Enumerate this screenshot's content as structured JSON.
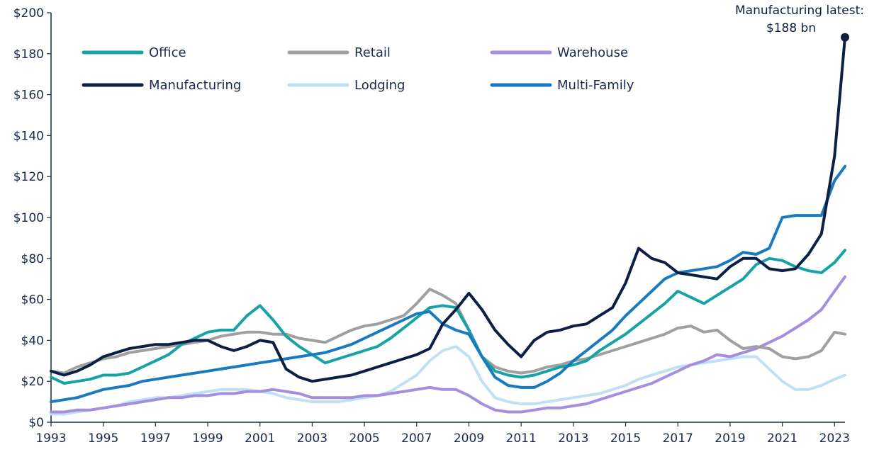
{
  "chart_data": {
    "type": "line",
    "title": "",
    "xlabel": "",
    "ylabel": "",
    "xlim": [
      1993.0,
      2023.4
    ],
    "ylim": [
      0,
      200
    ],
    "grid": false,
    "legend_position": "top-left",
    "x_ticks": [
      1993,
      1995,
      1997,
      1999,
      2001,
      2003,
      2005,
      2007,
      2009,
      2011,
      2013,
      2015,
      2017,
      2019,
      2021,
      2023
    ],
    "y_ticks": [
      0,
      20,
      40,
      60,
      80,
      100,
      120,
      140,
      160,
      180,
      200
    ],
    "y_tick_labels": [
      "$0",
      "$20",
      "$40",
      "$60",
      "$80",
      "$100",
      "$120",
      "$140",
      "$160",
      "$180",
      "$200"
    ],
    "x": [
      1993.0,
      1993.5,
      1994.0,
      1994.5,
      1995.0,
      1995.5,
      1996.0,
      1996.5,
      1997.0,
      1997.5,
      1998.0,
      1998.5,
      1999.0,
      1999.5,
      2000.0,
      2000.5,
      2001.0,
      2001.5,
      2002.0,
      2002.5,
      2003.0,
      2003.5,
      2004.0,
      2004.5,
      2005.0,
      2005.5,
      2006.0,
      2006.5,
      2007.0,
      2007.5,
      2008.0,
      2008.5,
      2009.0,
      2009.5,
      2010.0,
      2010.5,
      2011.0,
      2011.5,
      2012.0,
      2012.5,
      2013.0,
      2013.5,
      2014.0,
      2014.5,
      2015.0,
      2015.5,
      2016.0,
      2016.5,
      2017.0,
      2017.5,
      2018.0,
      2018.5,
      2019.0,
      2019.5,
      2020.0,
      2020.5,
      2021.0,
      2021.5,
      2022.0,
      2022.5,
      2023.0,
      2023.4
    ],
    "series": [
      {
        "name": "Office",
        "color": "#17a2a6",
        "values": [
          22,
          19,
          20,
          21,
          23,
          23,
          24,
          27,
          30,
          33,
          38,
          41,
          44,
          45,
          45,
          52,
          57,
          50,
          42,
          37,
          33,
          29,
          31,
          33,
          35,
          37,
          41,
          46,
          51,
          56,
          57,
          56,
          45,
          32,
          25,
          23,
          22,
          23,
          25,
          27,
          28,
          30,
          35,
          39,
          43,
          48,
          53,
          58,
          64,
          61,
          58,
          62,
          66,
          70,
          77,
          80,
          79,
          76,
          74,
          73,
          78,
          84
        ]
      },
      {
        "name": "Retail",
        "color": "#a0a0a0",
        "values": [
          25,
          24,
          27,
          29,
          31,
          32,
          34,
          35,
          36,
          37,
          38,
          39,
          40,
          42,
          43,
          44,
          44,
          43,
          43,
          41,
          40,
          39,
          42,
          45,
          47,
          48,
          50,
          52,
          58,
          65,
          62,
          58,
          45,
          32,
          27,
          25,
          24,
          25,
          27,
          28,
          30,
          31,
          33,
          35,
          37,
          39,
          41,
          43,
          46,
          47,
          44,
          45,
          40,
          36,
          37,
          36,
          32,
          31,
          32,
          35,
          44,
          43
        ]
      },
      {
        "name": "Warehouse",
        "color": "#a58ee0",
        "values": [
          5,
          5,
          6,
          6,
          7,
          8,
          9,
          10,
          11,
          12,
          12,
          13,
          13,
          14,
          14,
          15,
          15,
          16,
          15,
          14,
          12,
          12,
          12,
          12,
          13,
          13,
          14,
          15,
          16,
          17,
          16,
          16,
          13,
          9,
          6,
          5,
          5,
          6,
          7,
          7,
          8,
          9,
          11,
          13,
          15,
          17,
          19,
          22,
          25,
          28,
          30,
          33,
          32,
          34,
          36,
          39,
          42,
          46,
          50,
          55,
          64,
          71
        ]
      },
      {
        "name": "Manufacturing",
        "color": "#0d1f45",
        "values": [
          25,
          23,
          25,
          28,
          32,
          34,
          36,
          37,
          38,
          38,
          39,
          40,
          40,
          37,
          35,
          37,
          40,
          39,
          26,
          22,
          20,
          21,
          22,
          23,
          25,
          27,
          29,
          31,
          33,
          36,
          48,
          55,
          63,
          55,
          45,
          38,
          32,
          40,
          44,
          45,
          47,
          48,
          52,
          56,
          68,
          85,
          80,
          78,
          73,
          72,
          71,
          70,
          76,
          80,
          80,
          75,
          74,
          75,
          82,
          92,
          130,
          188
        ]
      },
      {
        "name": "Lodging",
        "color": "#bfe0f5",
        "values": [
          4,
          4,
          5,
          6,
          7,
          8,
          10,
          11,
          12,
          12,
          13,
          14,
          15,
          16,
          16,
          16,
          15,
          14,
          12,
          11,
          10,
          10,
          10,
          11,
          12,
          13,
          15,
          19,
          23,
          30,
          35,
          37,
          32,
          20,
          12,
          10,
          9,
          9,
          10,
          11,
          12,
          13,
          14,
          16,
          18,
          21,
          23,
          25,
          27,
          28,
          29,
          30,
          31,
          32,
          32,
          26,
          20,
          16,
          16,
          18,
          21,
          23
        ]
      },
      {
        "name": "Multi-Family",
        "color": "#1a7ac0",
        "values": [
          10,
          11,
          12,
          14,
          16,
          17,
          18,
          20,
          21,
          22,
          23,
          24,
          25,
          26,
          27,
          28,
          29,
          30,
          31,
          32,
          33,
          34,
          36,
          38,
          41,
          44,
          47,
          50,
          53,
          54,
          48,
          45,
          43,
          32,
          22,
          18,
          17,
          17,
          20,
          24,
          30,
          35,
          40,
          45,
          52,
          58,
          64,
          70,
          73,
          74,
          75,
          76,
          79,
          83,
          82,
          85,
          100,
          101,
          101,
          101,
          118,
          125
        ]
      }
    ],
    "annotation": {
      "line1": "Manufacturing latest:",
      "line2": "$188 bn",
      "x": 2023.4,
      "y": 188
    }
  }
}
